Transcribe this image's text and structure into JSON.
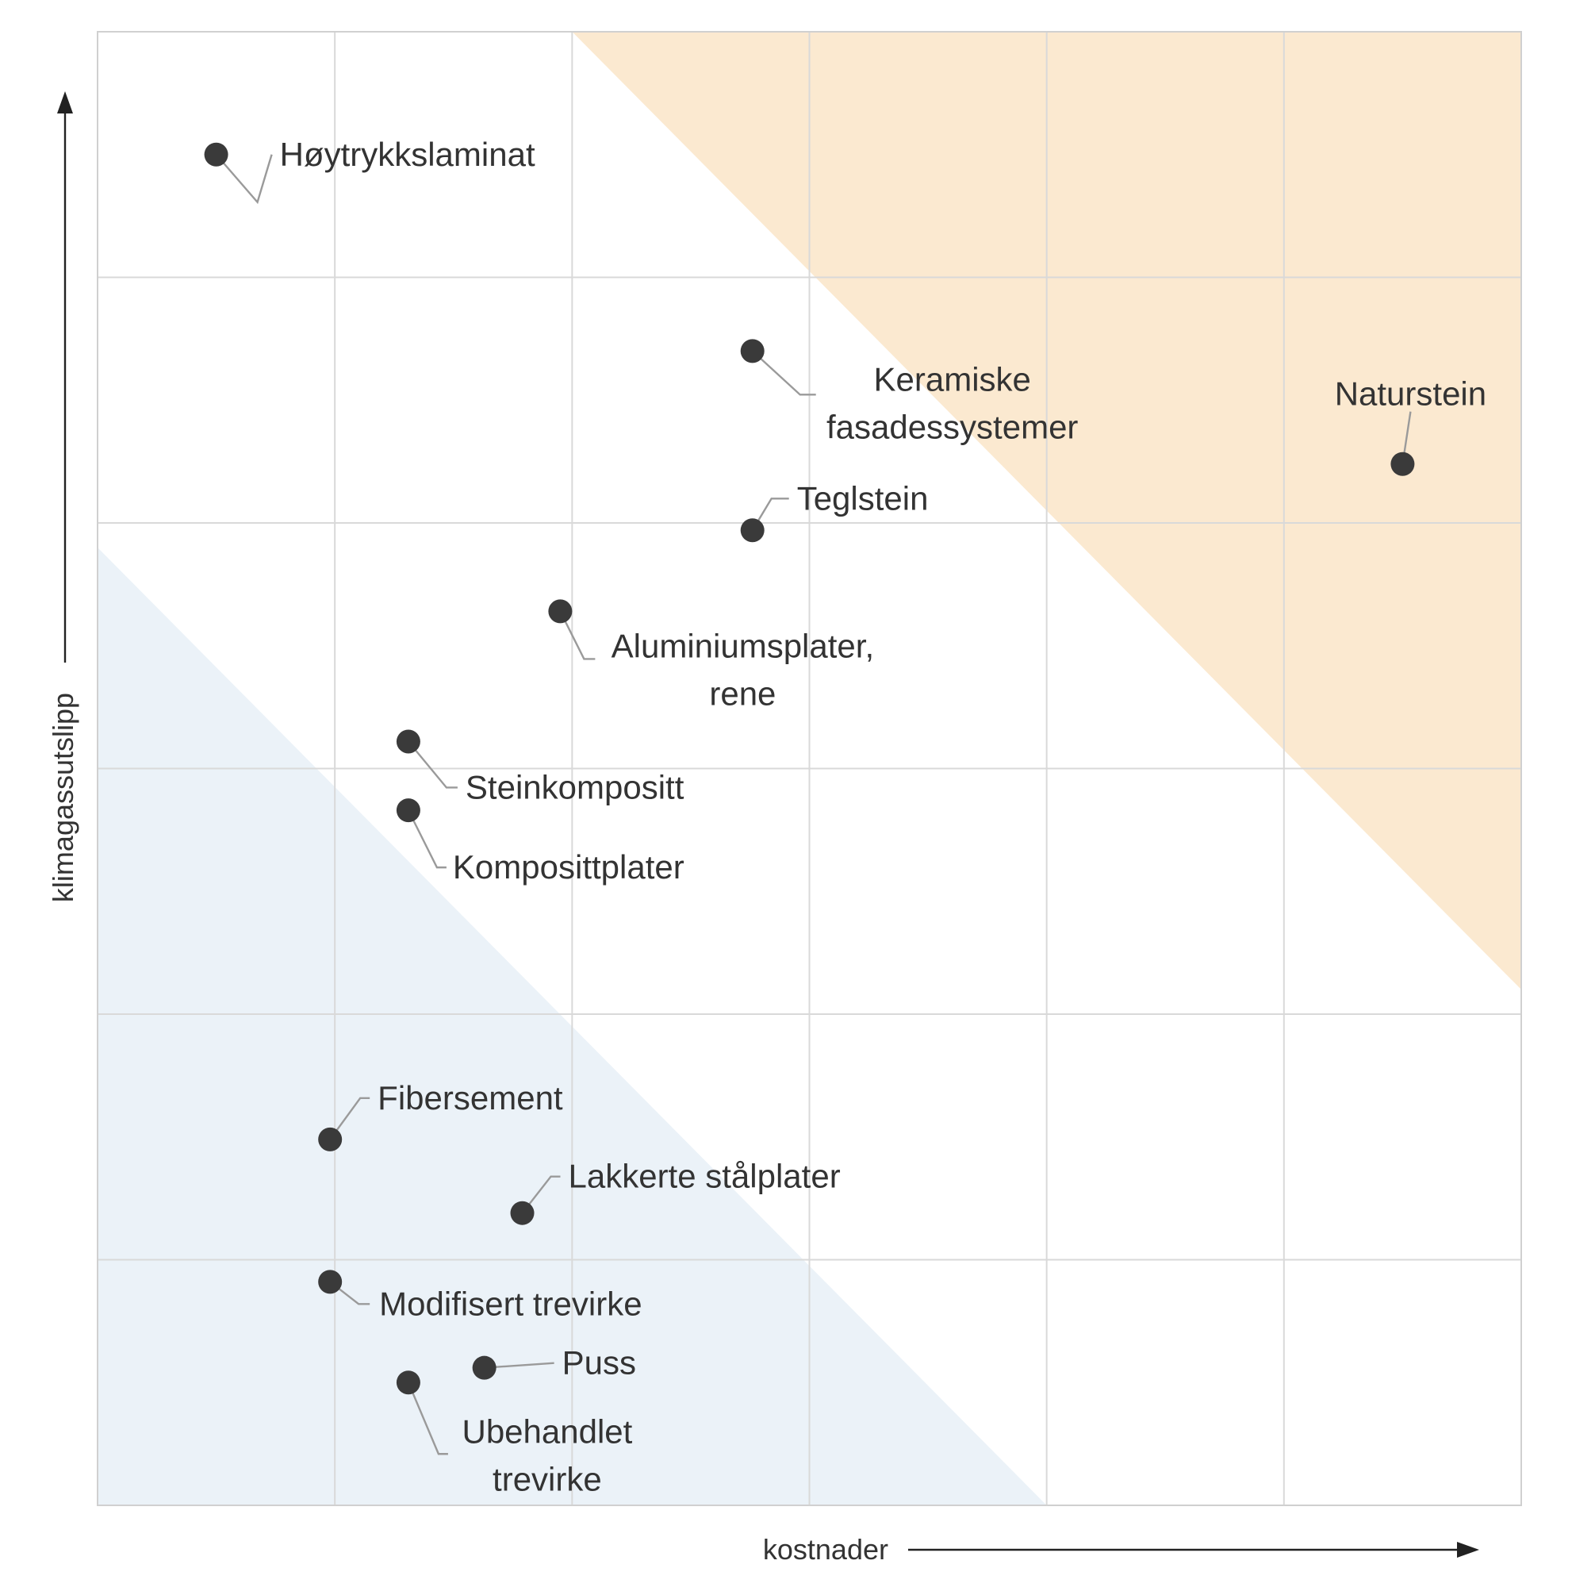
{
  "chart_data": {
    "type": "scatter",
    "title": "",
    "xlabel": "kostnader",
    "ylabel": "klimagassutslipp",
    "xlim": [
      0,
      6
    ],
    "ylim": [
      0,
      6
    ],
    "grid": true,
    "axis_ticks_labeled": false,
    "colors": {
      "dot": "#3a3a3a",
      "leader": "#9a9a9a",
      "grid": "#d9d9d9",
      "high_zone": "#fbe9d0",
      "low_zone": "#ebf2f8"
    },
    "zones": [
      {
        "name": "high",
        "polygon": [
          [
            2.0,
            6.0
          ],
          [
            6.0,
            6.0
          ],
          [
            6.0,
            2.1
          ]
        ]
      },
      {
        "name": "low",
        "polygon": [
          [
            0.0,
            3.9
          ],
          [
            0.0,
            0.0
          ],
          [
            4.0,
            0.0
          ]
        ]
      }
    ],
    "points": [
      {
        "label": [
          "Høytrykkslaminat"
        ],
        "x": 0.5,
        "y": 5.5
      },
      {
        "label": [
          "Keramiske",
          "fasadessystemer"
        ],
        "x": 2.76,
        "y": 4.7
      },
      {
        "label": [
          "Naturstein"
        ],
        "x": 5.5,
        "y": 4.24
      },
      {
        "label": [
          "Teglstein"
        ],
        "x": 2.76,
        "y": 3.97
      },
      {
        "label": [
          "Aluminiumsplater,",
          "rene"
        ],
        "x": 1.95,
        "y": 3.64
      },
      {
        "label": [
          "Steinkompositt"
        ],
        "x": 1.31,
        "y": 3.11
      },
      {
        "label": [
          "Komposittplater"
        ],
        "x": 1.31,
        "y": 2.83
      },
      {
        "label": [
          "Fibersement"
        ],
        "x": 0.98,
        "y": 1.49
      },
      {
        "label": [
          "Lakkerte stålplater"
        ],
        "x": 1.79,
        "y": 1.19
      },
      {
        "label": [
          "Modifisert trevirke"
        ],
        "x": 0.98,
        "y": 0.91
      },
      {
        "label": [
          "Puss"
        ],
        "x": 1.63,
        "y": 0.56
      },
      {
        "label": [
          "Ubehandlet",
          "trevirke"
        ],
        "x": 1.31,
        "y": 0.5
      }
    ]
  }
}
